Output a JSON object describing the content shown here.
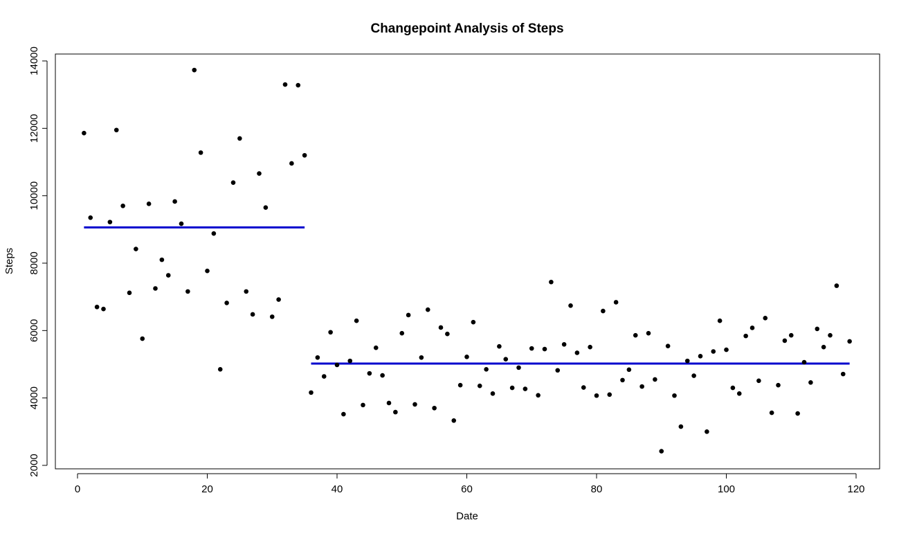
{
  "chart_data": {
    "type": "scatter",
    "title": "Changepoint Analysis of Steps",
    "xlabel": "Date",
    "ylabel": "Steps",
    "xlim": [
      0,
      120
    ],
    "ylim": [
      2000,
      14000
    ],
    "xticks": [
      0,
      20,
      40,
      60,
      80,
      100,
      120
    ],
    "yticks": [
      2000,
      4000,
      6000,
      8000,
      10000,
      12000,
      14000
    ],
    "xtick_labels": [
      "0",
      "20",
      "40",
      "60",
      "80",
      "100",
      "120"
    ],
    "ytick_labels": [
      "2000",
      "4000",
      "6000",
      "8000",
      "10000",
      "12000",
      "14000"
    ],
    "grid": false,
    "point_color": "#000000",
    "segment_color": "#0000cd",
    "points": [
      [
        1,
        11860
      ],
      [
        2,
        9350
      ],
      [
        3,
        6700
      ],
      [
        4,
        6640
      ],
      [
        5,
        9220
      ],
      [
        6,
        11950
      ],
      [
        7,
        9700
      ],
      [
        8,
        7120
      ],
      [
        9,
        8420
      ],
      [
        10,
        5760
      ],
      [
        11,
        9760
      ],
      [
        12,
        7250
      ],
      [
        13,
        8100
      ],
      [
        14,
        7640
      ],
      [
        15,
        9830
      ],
      [
        16,
        9170
      ],
      [
        17,
        7160
      ],
      [
        18,
        13730
      ],
      [
        19,
        11280
      ],
      [
        20,
        7770
      ],
      [
        21,
        8880
      ],
      [
        22,
        4850
      ],
      [
        23,
        6820
      ],
      [
        24,
        10390
      ],
      [
        25,
        11700
      ],
      [
        26,
        7160
      ],
      [
        27,
        6480
      ],
      [
        28,
        10660
      ],
      [
        29,
        9650
      ],
      [
        30,
        6410
      ],
      [
        31,
        6920
      ],
      [
        32,
        13300
      ],
      [
        33,
        10960
      ],
      [
        34,
        13280
      ],
      [
        35,
        11200
      ],
      [
        36,
        4160
      ],
      [
        37,
        5200
      ],
      [
        38,
        4640
      ],
      [
        39,
        5950
      ],
      [
        40,
        4980
      ],
      [
        41,
        3520
      ],
      [
        42,
        5100
      ],
      [
        43,
        6290
      ],
      [
        44,
        3790
      ],
      [
        45,
        4730
      ],
      [
        46,
        5490
      ],
      [
        47,
        4670
      ],
      [
        48,
        3850
      ],
      [
        49,
        3580
      ],
      [
        50,
        5920
      ],
      [
        51,
        6460
      ],
      [
        52,
        3810
      ],
      [
        53,
        5200
      ],
      [
        54,
        6620
      ],
      [
        55,
        3700
      ],
      [
        56,
        6090
      ],
      [
        57,
        5900
      ],
      [
        58,
        3330
      ],
      [
        59,
        4380
      ],
      [
        60,
        5220
      ],
      [
        61,
        6250
      ],
      [
        62,
        4360
      ],
      [
        63,
        4850
      ],
      [
        64,
        4130
      ],
      [
        65,
        5530
      ],
      [
        66,
        5150
      ],
      [
        67,
        4300
      ],
      [
        68,
        4900
      ],
      [
        69,
        4270
      ],
      [
        70,
        5470
      ],
      [
        71,
        4080
      ],
      [
        72,
        5450
      ],
      [
        73,
        7440
      ],
      [
        74,
        4820
      ],
      [
        75,
        5590
      ],
      [
        76,
        6740
      ],
      [
        77,
        5340
      ],
      [
        78,
        4310
      ],
      [
        79,
        5510
      ],
      [
        80,
        4070
      ],
      [
        81,
        6580
      ],
      [
        82,
        4100
      ],
      [
        83,
        6840
      ],
      [
        84,
        4530
      ],
      [
        85,
        4840
      ],
      [
        86,
        5860
      ],
      [
        87,
        4340
      ],
      [
        88,
        5920
      ],
      [
        89,
        4550
      ],
      [
        90,
        2420
      ],
      [
        91,
        5540
      ],
      [
        92,
        4070
      ],
      [
        93,
        3150
      ],
      [
        94,
        5100
      ],
      [
        95,
        4660
      ],
      [
        96,
        5240
      ],
      [
        97,
        3000
      ],
      [
        98,
        5380
      ],
      [
        99,
        6290
      ],
      [
        100,
        5430
      ],
      [
        101,
        4300
      ],
      [
        102,
        4130
      ],
      [
        103,
        5840
      ],
      [
        104,
        6080
      ],
      [
        105,
        4510
      ],
      [
        106,
        6370
      ],
      [
        107,
        3560
      ],
      [
        108,
        4380
      ],
      [
        109,
        5700
      ],
      [
        110,
        5860
      ],
      [
        111,
        3540
      ],
      [
        112,
        5060
      ],
      [
        113,
        4460
      ],
      [
        114,
        6050
      ],
      [
        115,
        5510
      ],
      [
        116,
        5860
      ],
      [
        117,
        7330
      ],
      [
        118,
        4710
      ],
      [
        119,
        5680
      ]
    ],
    "segments": [
      {
        "x_start": 1,
        "x_end": 35,
        "y": 9060
      },
      {
        "x_start": 36,
        "x_end": 119,
        "y": 5020
      }
    ]
  }
}
